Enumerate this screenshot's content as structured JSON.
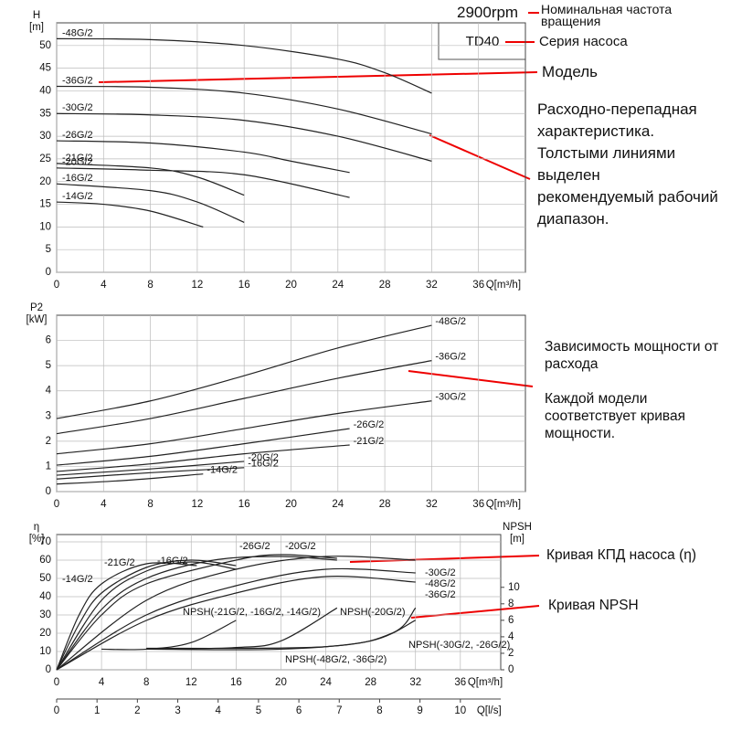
{
  "annotations": {
    "rated_speed": "2900rpm",
    "rated_speed_note": "Номинальная частота вращения",
    "series_name": "TD40",
    "series_note": "Серия насоса",
    "model_note": "Модель",
    "head_note": "Расходно-перепадная характеристика. Толстыми линиями выделен рекомендуемый рабочий диапазон.",
    "power_note": "Зависимость мощности от расхода",
    "power_note_2": "Каждой модели соответствует кривая мощности.",
    "efficiency_note": "Кривая КПД насоса (η)",
    "npsh_note": "Кривая NPSH"
  },
  "chart_data": [
    {
      "type": "line",
      "xlabel": "Q[m³/h]",
      "ylabel": "H",
      "yunit": "[m]",
      "xlim": [
        0,
        40
      ],
      "ylim": [
        0,
        55
      ],
      "xticks": [
        0,
        4,
        8,
        12,
        16,
        20,
        24,
        28,
        32,
        36
      ],
      "yticks": [
        0,
        5,
        10,
        15,
        20,
        25,
        30,
        35,
        40,
        45,
        50
      ],
      "grid": true,
      "series": [
        {
          "name": "-48G/2",
          "color": "#222222",
          "x": [
            0,
            8,
            16,
            24,
            28,
            32
          ],
          "values": [
            51.5,
            51.3,
            50,
            47,
            44,
            39.5
          ]
        },
        {
          "name": "-36G/2",
          "color": "#222222",
          "x": [
            0,
            8,
            16,
            24,
            32
          ],
          "values": [
            41,
            40.8,
            39.5,
            36,
            30.5
          ]
        },
        {
          "name": "-30G/2",
          "color": "#222222",
          "x": [
            0,
            8,
            16,
            24,
            32
          ],
          "values": [
            35,
            34.7,
            33.5,
            30,
            24.5
          ]
        },
        {
          "name": "-26G/2",
          "color": "#222222",
          "x": [
            0,
            8,
            16,
            20,
            25
          ],
          "values": [
            29,
            28.5,
            26.5,
            24.5,
            22
          ]
        },
        {
          "name": "-21G/2",
          "color": "#222222",
          "x": [
            0,
            8,
            12,
            16
          ],
          "values": [
            24,
            23,
            21,
            17
          ]
        },
        {
          "name": "-20G/2",
          "color": "#222222",
          "x": [
            0,
            8,
            16,
            25
          ],
          "values": [
            23,
            22.5,
            21.5,
            16.5
          ]
        },
        {
          "name": "-16G/2",
          "color": "#222222",
          "x": [
            0,
            8,
            12,
            16
          ],
          "values": [
            19.5,
            18,
            15.5,
            11
          ]
        },
        {
          "name": "-14G/2",
          "color": "#222222",
          "x": [
            0,
            4,
            8,
            12.5
          ],
          "values": [
            15.5,
            15,
            13.5,
            10
          ]
        }
      ]
    },
    {
      "type": "line",
      "xlabel": "Q[m³/h]",
      "ylabel": "P2",
      "yunit": "[kW]",
      "xlim": [
        0,
        40
      ],
      "ylim": [
        0,
        7
      ],
      "xticks": [
        0,
        4,
        8,
        12,
        16,
        20,
        24,
        28,
        32,
        36
      ],
      "yticks": [
        0,
        1,
        2,
        3,
        4,
        5,
        6
      ],
      "grid": true,
      "series": [
        {
          "name": "-48G/2",
          "color": "#222222",
          "x": [
            0,
            8,
            16,
            24,
            32
          ],
          "values": [
            2.9,
            3.6,
            4.6,
            5.7,
            6.6
          ]
        },
        {
          "name": "-36G/2",
          "color": "#222222",
          "x": [
            0,
            8,
            16,
            24,
            32
          ],
          "values": [
            2.3,
            2.9,
            3.7,
            4.5,
            5.2
          ]
        },
        {
          "name": "-30G/2",
          "color": "#222222",
          "x": [
            0,
            8,
            16,
            24,
            32
          ],
          "values": [
            1.5,
            1.9,
            2.5,
            3.1,
            3.6
          ]
        },
        {
          "name": "-26G/2",
          "color": "#222222",
          "x": [
            0,
            8,
            16,
            25
          ],
          "values": [
            1.05,
            1.4,
            1.9,
            2.5
          ]
        },
        {
          "name": "-21G/2",
          "color": "#222222",
          "x": [
            0,
            8,
            16,
            25
          ],
          "values": [
            0.8,
            1.1,
            1.5,
            1.85
          ]
        },
        {
          "name": "-20G/2",
          "color": "#222222",
          "x": [
            0,
            8,
            16
          ],
          "values": [
            0.65,
            0.9,
            1.2
          ]
        },
        {
          "name": "-16G/2",
          "color": "#222222",
          "x": [
            0,
            8,
            16
          ],
          "values": [
            0.5,
            0.75,
            0.95
          ]
        },
        {
          "name": "-14G/2",
          "color": "#222222",
          "x": [
            0,
            6,
            12.5
          ],
          "values": [
            0.3,
            0.45,
            0.7
          ]
        }
      ]
    },
    {
      "type": "line",
      "xlabel": "Q[m³/h]",
      "ylabel": "η",
      "yunit": "[%]",
      "y2label": "NPSH",
      "y2unit": "[m]",
      "x2label": "Q[l/s]",
      "x2lim": [
        0,
        11
      ],
      "x2ticks": [
        0,
        1,
        2,
        3,
        4,
        5,
        6,
        7,
        8,
        9,
        10
      ],
      "xlim": [
        0,
        39.6
      ],
      "ylim": [
        0,
        74
      ],
      "y2lim": [
        0,
        16.4
      ],
      "xticks": [
        0,
        4,
        8,
        12,
        16,
        20,
        24,
        28,
        32,
        36
      ],
      "yticks": [
        0,
        10,
        20,
        30,
        40,
        50,
        60,
        70
      ],
      "y2ticks": [
        0,
        2,
        4,
        6,
        8,
        10
      ],
      "grid": true,
      "series": [
        {
          "name": "-14G/2",
          "color": "#222222",
          "x": [
            0,
            2,
            4,
            8,
            12.5
          ],
          "values": [
            0,
            30,
            47,
            58,
            57
          ]
        },
        {
          "name": "-21G/2",
          "color": "#222222",
          "x": [
            0,
            2,
            4,
            8,
            12,
            16
          ],
          "values": [
            0,
            25,
            42,
            56,
            60,
            57
          ]
        },
        {
          "name": "-16G/2",
          "color": "#222222",
          "x": [
            0,
            4,
            8,
            12,
            16
          ],
          "values": [
            0,
            38,
            54,
            59,
            55
          ]
        },
        {
          "name": "-26G/2",
          "color": "#222222",
          "x": [
            0,
            4,
            8,
            14,
            20,
            25
          ],
          "values": [
            0,
            33,
            50,
            60,
            62,
            60
          ]
        },
        {
          "name": "-20G/2",
          "color": "#222222",
          "x": [
            0,
            4,
            8,
            16,
            20,
            25
          ],
          "values": [
            0,
            30,
            47,
            60,
            63,
            61
          ]
        },
        {
          "name": "-30G/2",
          "color": "#222222",
          "x": [
            0,
            8,
            16,
            24,
            32
          ],
          "values": [
            0,
            38,
            55,
            62,
            60
          ]
        },
        {
          "name": "-48G/2",
          "color": "#222222",
          "x": [
            0,
            8,
            16,
            24,
            32
          ],
          "values": [
            0,
            30,
            46,
            55,
            53
          ]
        },
        {
          "name": "-36G/2",
          "color": "#222222",
          "x": [
            0,
            8,
            16,
            24,
            32
          ],
          "values": [
            0,
            27,
            42,
            51,
            48
          ]
        },
        {
          "name": "NPSH(-21G/2, -16G/2, -14G/2)",
          "color": "#222222",
          "axis": "y2",
          "x": [
            4,
            8,
            12,
            16
          ],
          "values": [
            2.5,
            2.5,
            3.3,
            6
          ]
        },
        {
          "name": "NPSH(-20G/2)",
          "color": "#222222",
          "axis": "y2",
          "x": [
            8,
            16,
            20,
            25
          ],
          "values": [
            2.5,
            2.7,
            3.5,
            7.5
          ]
        },
        {
          "name": "NPSH(-48G/2, -36G/2)",
          "color": "#222222",
          "axis": "y2",
          "x": [
            8,
            20,
            28,
            32
          ],
          "values": [
            2.5,
            2.5,
            3.5,
            6
          ]
        },
        {
          "name": "NPSH(-30G/2, -26G/2)",
          "color": "#222222",
          "axis": "y2",
          "x": [
            8,
            24,
            30,
            32
          ],
          "values": [
            2.6,
            2.8,
            4.5,
            7.5
          ]
        }
      ]
    }
  ]
}
